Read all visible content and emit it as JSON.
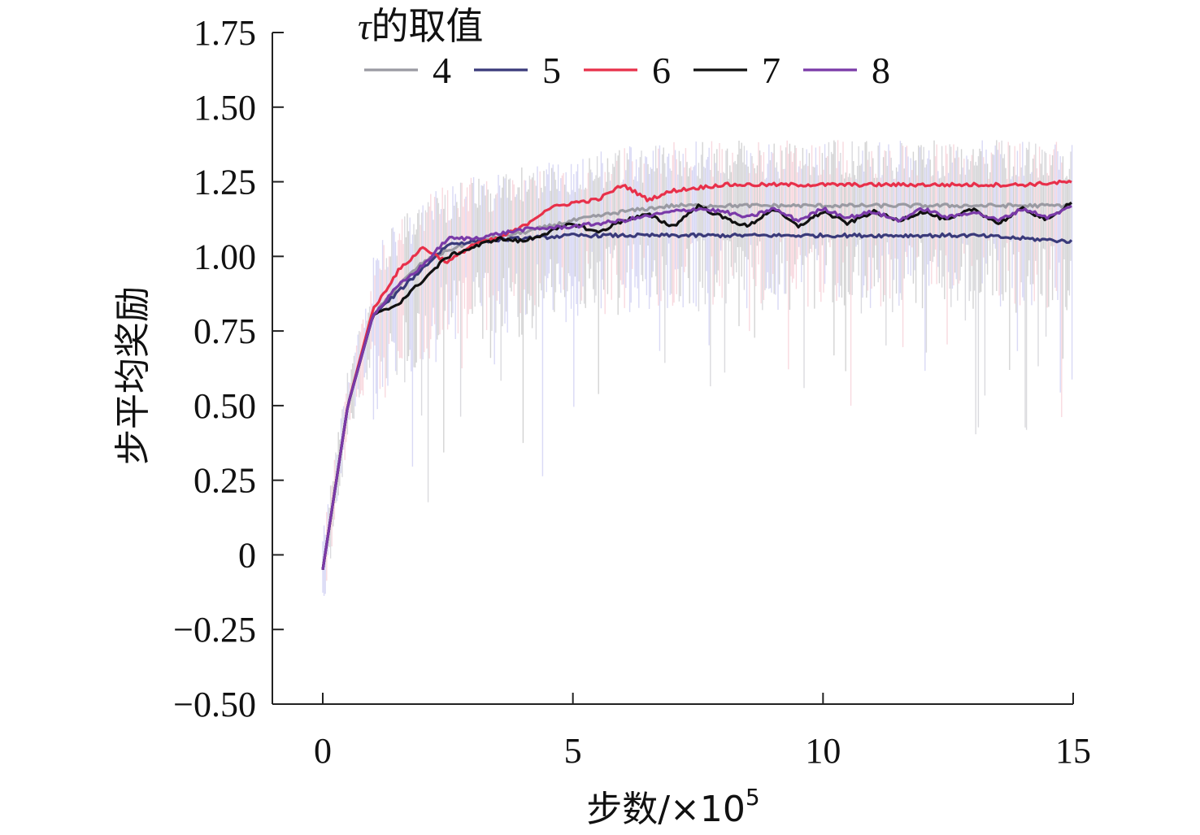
{
  "chart_data": {
    "type": "line",
    "title": "",
    "xlabel_main": "步数/×10",
    "xlabel_exp": "5",
    "ylabel": "步平均奖励",
    "xlim": [
      -0.2,
      15
    ],
    "ylim": [
      -0.5,
      1.75
    ],
    "x_ticks": [
      0,
      5,
      10,
      15
    ],
    "x_tick_labels": [
      "0",
      "5",
      "10",
      "15"
    ],
    "y_ticks": [
      -0.5,
      -0.25,
      0,
      0.25,
      0.5,
      0.75,
      1.0,
      1.25,
      1.5,
      1.75
    ],
    "y_tick_labels": [
      "−0.50",
      "−0.25",
      "0",
      "0.25",
      "0.50",
      "0.75",
      "1.00",
      "1.25",
      "1.50",
      "1.75"
    ],
    "legend": {
      "title_symbol": "τ",
      "title_text": "的取值",
      "placement": "top"
    },
    "series": [
      {
        "name": "4",
        "color": "#9a9aa2",
        "x": [
          0,
          0.5,
          1,
          1.5,
          2,
          2.5,
          3,
          4,
          5,
          6,
          7,
          8,
          9,
          10,
          11,
          12,
          13,
          14,
          15
        ],
        "y": [
          -0.05,
          0.5,
          0.8,
          0.9,
          0.98,
          1.02,
          1.05,
          1.08,
          1.12,
          1.15,
          1.17,
          1.17,
          1.17,
          1.17,
          1.17,
          1.17,
          1.17,
          1.17,
          1.17
        ]
      },
      {
        "name": "5",
        "color": "#3a3a7a",
        "x": [
          0,
          0.5,
          1,
          1.5,
          2,
          2.5,
          3,
          4,
          5,
          6,
          7,
          8,
          9,
          10,
          11,
          12,
          13,
          14,
          15
        ],
        "y": [
          -0.05,
          0.5,
          0.8,
          0.88,
          0.96,
          1.04,
          1.05,
          1.06,
          1.07,
          1.07,
          1.07,
          1.07,
          1.07,
          1.07,
          1.07,
          1.07,
          1.07,
          1.06,
          1.05
        ]
      },
      {
        "name": "6",
        "color": "#e8304a",
        "x": [
          0,
          0.5,
          1,
          1.5,
          2,
          2.5,
          3,
          3.5,
          4,
          4.5,
          5,
          5.5,
          6,
          6.5,
          7,
          7.5,
          8,
          9,
          10,
          11,
          12,
          13,
          14,
          15
        ],
        "y": [
          -0.05,
          0.5,
          0.82,
          0.95,
          1.03,
          0.98,
          1.04,
          1.06,
          1.1,
          1.16,
          1.18,
          1.19,
          1.24,
          1.19,
          1.22,
          1.23,
          1.24,
          1.24,
          1.24,
          1.24,
          1.24,
          1.24,
          1.24,
          1.25
        ]
      },
      {
        "name": "7",
        "color": "#111111",
        "x": [
          0,
          0.5,
          1,
          1.5,
          2,
          2.5,
          3,
          3.5,
          4,
          4.5,
          5,
          5.5,
          6,
          6.5,
          7,
          7.5,
          8,
          8.5,
          9,
          9.5,
          10,
          10.5,
          11,
          11.5,
          12,
          12.5,
          13,
          13.5,
          14,
          14.5,
          15
        ],
        "y": [
          -0.05,
          0.5,
          0.8,
          0.84,
          0.92,
          1.0,
          1.03,
          1.06,
          1.05,
          1.08,
          1.11,
          1.08,
          1.12,
          1.14,
          1.1,
          1.17,
          1.13,
          1.1,
          1.16,
          1.1,
          1.15,
          1.11,
          1.15,
          1.12,
          1.15,
          1.12,
          1.16,
          1.11,
          1.16,
          1.12,
          1.19
        ]
      },
      {
        "name": "8",
        "color": "#7a3aa8",
        "x": [
          0,
          0.5,
          1,
          1.5,
          2,
          2.5,
          3,
          4,
          5,
          6,
          7,
          7.5,
          8,
          8.5,
          9,
          9.5,
          10,
          10.5,
          11,
          11.5,
          12,
          12.5,
          13,
          13.5,
          14,
          14.5,
          15
        ],
        "y": [
          -0.05,
          0.5,
          0.8,
          0.9,
          0.97,
          1.06,
          1.06,
          1.09,
          1.1,
          1.12,
          1.15,
          1.16,
          1.15,
          1.13,
          1.16,
          1.12,
          1.16,
          1.13,
          1.15,
          1.12,
          1.16,
          1.13,
          1.15,
          1.12,
          1.16,
          1.13,
          1.17
        ]
      }
    ]
  }
}
